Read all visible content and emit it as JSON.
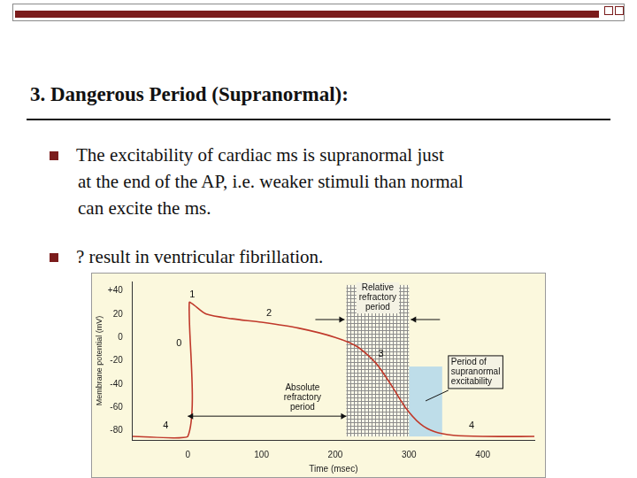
{
  "slide": {
    "heading": "3. Dangerous Period (Supranormal):",
    "bullets": [
      [
        "The excitability of cardiac ms is supranormal just",
        "at the end of the AP, i.e. weaker stimuli than normal",
        "can excite the ms."
      ],
      [
        "? result in ventricular fibrillation."
      ]
    ]
  },
  "chart_data": {
    "type": "line",
    "x_label": "Time (msec)",
    "y_label": "Membrane potential (mV)",
    "x": [
      -75,
      0,
      2,
      8,
      25,
      60,
      100,
      150,
      200,
      230,
      255,
      275,
      295,
      315,
      335,
      360,
      400,
      470
    ],
    "values": [
      -85,
      -85,
      30,
      28,
      20,
      16,
      13,
      8,
      0,
      -8,
      -22,
      -40,
      -60,
      -74,
      -81,
      -84,
      -85,
      -85
    ],
    "color": "#c0392b",
    "xlim": [
      -75,
      470
    ],
    "xticks": [
      0,
      100,
      200,
      300,
      400
    ],
    "ylim": [
      -88,
      48
    ],
    "yticks": [
      {
        "value": 40,
        "label": "+40"
      },
      20,
      0,
      -20,
      -40,
      -60,
      -80
    ],
    "grid": false,
    "phase_labels": [
      {
        "text": "0",
        "x": -12,
        "y": -5
      },
      {
        "text": "1",
        "x": 6,
        "y": 37
      },
      {
        "text": "2",
        "x": 110,
        "y": 21
      },
      {
        "text": "3",
        "x": 262,
        "y": -14
      },
      {
        "text": "4",
        "x": -30,
        "y": -76
      },
      {
        "text": "4",
        "x": 385,
        "y": -76
      }
    ],
    "periods": [
      {
        "text": "Absolute refractory period",
        "x": [
          0,
          215
        ]
      },
      {
        "text": "Relative refractory period",
        "x": [
          215,
          300
        ],
        "y": [
          -85,
          45
        ],
        "color": "#8c8c8c"
      },
      {
        "text": "Period of supranormal excitability",
        "x": [
          300,
          345
        ],
        "y": [
          -85,
          -25
        ],
        "color": "#a9d4ec"
      }
    ]
  }
}
